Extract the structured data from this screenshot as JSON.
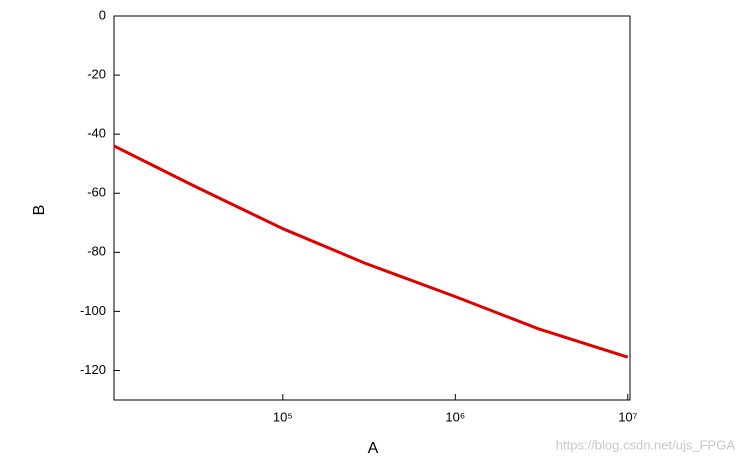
{
  "chart_data": {
    "type": "line",
    "x_label": "A",
    "y_label": "B",
    "x": [
      10500,
      30000,
      100000,
      300000,
      1000000,
      3000000,
      10000000
    ],
    "series": [
      {
        "name": "B",
        "color": "#e00000",
        "values": [
          -44,
          -57.3,
          -72,
          -83.7,
          -95,
          -105.8,
          -115.5
        ]
      }
    ],
    "xscale": "log",
    "xlim": [
      10500,
      10300000
    ],
    "xticks": [
      {
        "value": 100000,
        "label": "10⁵"
      },
      {
        "value": 1000000,
        "label": "10⁶"
      },
      {
        "value": 10000000,
        "label": "10⁷"
      }
    ],
    "ylim": [
      -130,
      0
    ],
    "yticks": [
      0,
      -20,
      -40,
      -60,
      -80,
      -100,
      -120
    ],
    "grid": false,
    "watermark": "https://blog.csdn.net/ujs_FPGA"
  }
}
